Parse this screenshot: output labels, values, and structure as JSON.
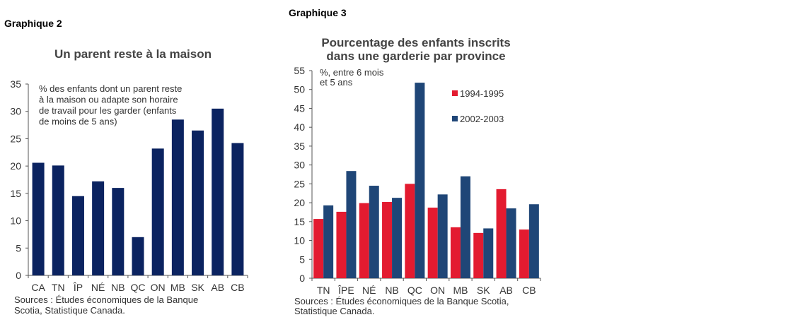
{
  "chart_data": [
    {
      "type": "bar",
      "label": "Graphique 2",
      "title": "Un parent reste à la maison",
      "annotation": [
        "% des enfants dont un parent reste",
        "à la maison ou adapte son horaire",
        "de travail pour les garder (enfants",
        "de moins de 5 ans)"
      ],
      "categories": [
        "CA",
        "TN",
        "ÎP",
        "NÉ",
        "NB",
        "QC",
        "ON",
        "MB",
        "SK",
        "AB",
        "CB"
      ],
      "values": [
        20.6,
        20.1,
        14.5,
        17.2,
        16.0,
        7.0,
        23.2,
        28.5,
        26.5,
        30.5,
        24.2
      ],
      "ylim": [
        0,
        35
      ],
      "yticks": [
        0,
        5,
        10,
        15,
        20,
        25,
        30,
        35
      ],
      "color": "#0b2360",
      "source": [
        "Sources : Études économiques de la Banque",
        "Scotia, Statistique Canada."
      ]
    },
    {
      "type": "bar",
      "label": "Graphique 3",
      "title": [
        "Pourcentage des enfants inscrits",
        "dans une garderie par province"
      ],
      "annotation": [
        "%, entre 6 mois",
        "et 5 ans"
      ],
      "categories": [
        "TN",
        "ÎPE",
        "NÉ",
        "NB",
        "QC",
        "ON",
        "MB",
        "SK",
        "AB",
        "CB"
      ],
      "series": [
        {
          "name": "1994-1995",
          "color": "#e31b30",
          "values": [
            15.7,
            17.6,
            19.9,
            20.2,
            25.0,
            18.7,
            13.5,
            12.0,
            23.6,
            12.9
          ]
        },
        {
          "name": "2002-2003",
          "color": "#1f4677",
          "values": [
            19.3,
            28.4,
            24.5,
            21.3,
            51.8,
            22.2,
            27.0,
            13.2,
            18.5,
            19.6
          ]
        }
      ],
      "ylim": [
        0,
        55
      ],
      "yticks": [
        0,
        5,
        10,
        15,
        20,
        25,
        30,
        35,
        40,
        45,
        50,
        55
      ],
      "legend": "top-right",
      "source": [
        "Sources : Études économiques de la Banque Scotia,",
        "Statistique Canada."
      ]
    }
  ]
}
